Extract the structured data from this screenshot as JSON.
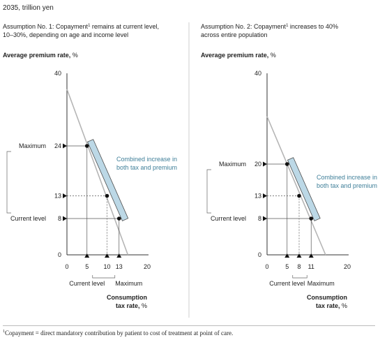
{
  "unit_label": "2035, trillion yen",
  "footnote": {
    "marker": "1",
    "text": "Copayment = direct mandatory contribution by patient to cost of treatment at point of care."
  },
  "colors": {
    "text": "#222222",
    "axis": "#333333",
    "demand_line": "#b5b5b5",
    "band_fill": "#bcd8e6",
    "band_stroke": "#4d4d4d",
    "annotation_text": "#3f7f99",
    "dashed": "#555555"
  },
  "chart_data": [
    {
      "type": "line",
      "panel": "left",
      "title_line1_pre": "Assumption No. 1: Copayment",
      "title_sup": "1",
      "title_line1_post": " remains at current level,",
      "title_line2": "10–30%, depending on age and income level",
      "ylabel_bold": "Average premium rate,",
      "ylabel_unit": " %",
      "xlabel_line1": "Consumption",
      "xlabel_line2_bold": "tax rate,",
      "xlabel_line2_unit": " %",
      "xlim": [
        0,
        20
      ],
      "ylim": [
        0,
        40
      ],
      "x_ticks": [
        "0",
        "5",
        "10",
        "13",
        "20"
      ],
      "x_tick_values": [
        0,
        5,
        10,
        13,
        20
      ],
      "y_ticks": [
        "0",
        "8",
        "13",
        "24",
        "40"
      ],
      "y_tick_values": [
        0,
        8,
        13,
        24,
        40
      ],
      "y_axis_labels": [
        {
          "value": 24,
          "text": "Maximum"
        },
        {
          "value": 8,
          "text": "Current level"
        }
      ],
      "x_axis_labels": [
        {
          "value": 5,
          "text": "Current level"
        },
        {
          "value": 13,
          "text": "Maximum"
        }
      ],
      "line": {
        "x": [
          0,
          15.2
        ],
        "y": [
          36.5,
          0
        ]
      },
      "points": [
        {
          "x": 5,
          "y": 24
        },
        {
          "x": 10,
          "y": 13
        },
        {
          "x": 13,
          "y": 8
        }
      ],
      "annotation": "Combined increase in both tax and premium",
      "annotation_lines": [
        "Combined increase in",
        "both tax and premium"
      ]
    },
    {
      "type": "line",
      "panel": "right",
      "title_line1_pre": "Assumption No. 2: Copayment",
      "title_sup": "1",
      "title_line1_post": " increases to 40%",
      "title_line2": "across entire population",
      "ylabel_bold": "Average premium rate,",
      "ylabel_unit": " %",
      "xlabel_line1": "Consumption",
      "xlabel_line2_bold": "tax rate,",
      "xlabel_line2_unit": " %",
      "xlim": [
        0,
        20
      ],
      "ylim": [
        0,
        40
      ],
      "x_ticks": [
        "0",
        "5",
        "8",
        "11",
        "20"
      ],
      "x_tick_values": [
        0,
        5,
        8,
        11,
        20
      ],
      "y_ticks": [
        "0",
        "8",
        "13",
        "20",
        "40"
      ],
      "y_tick_values": [
        0,
        8,
        13,
        20,
        40
      ],
      "y_axis_labels": [
        {
          "value": 20,
          "text": "Maximum"
        },
        {
          "value": 8,
          "text": "Current level"
        }
      ],
      "x_axis_labels": [
        {
          "value": 5,
          "text": "Current level"
        },
        {
          "value": 11,
          "text": "Maximum"
        }
      ],
      "line": {
        "x": [
          0,
          14.6
        ],
        "y": [
          30.5,
          0
        ]
      },
      "points": [
        {
          "x": 5,
          "y": 20
        },
        {
          "x": 8,
          "y": 13
        },
        {
          "x": 11,
          "y": 8
        }
      ],
      "annotation": "Combined increase in both tax and premium",
      "annotation_lines": [
        "Combined increase in",
        "both tax and premium"
      ]
    }
  ]
}
